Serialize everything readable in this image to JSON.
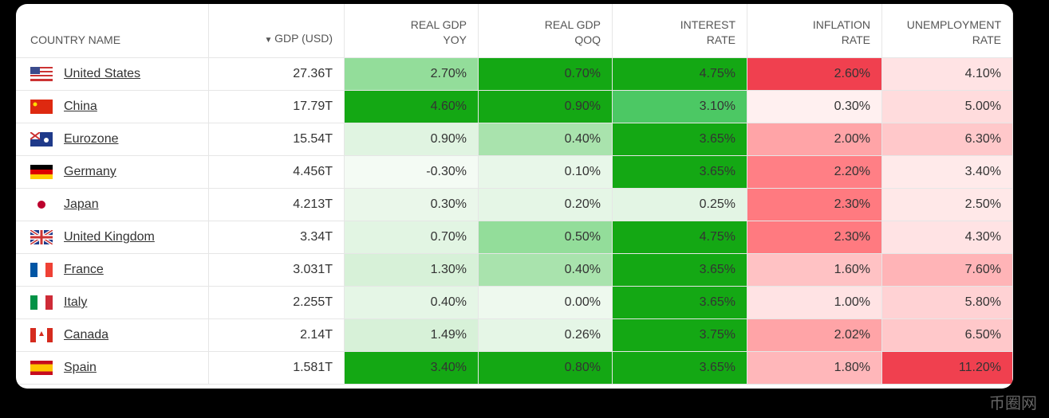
{
  "headers": [
    [
      "COUNTRY NAME"
    ],
    [
      "GDP (USD)"
    ],
    [
      "REAL GDP",
      "YOY"
    ],
    [
      "REAL GDP",
      "QOQ"
    ],
    [
      "INTEREST",
      "RATE"
    ],
    [
      "INFLATION",
      "RATE"
    ],
    [
      "UNEMPLOYMENT",
      "RATE"
    ]
  ],
  "rows": [
    [
      "United States",
      "27.36T",
      "2.70%",
      "0.70%",
      "4.75%",
      "2.60%",
      "4.10%"
    ],
    [
      "China",
      "17.79T",
      "4.60%",
      "0.90%",
      "3.10%",
      "0.30%",
      "5.00%"
    ],
    [
      "Eurozone",
      "15.54T",
      "0.90%",
      "0.40%",
      "3.65%",
      "2.00%",
      "6.30%"
    ],
    [
      "Germany",
      "4.456T",
      "-0.30%",
      "0.10%",
      "3.65%",
      "2.20%",
      "3.40%"
    ],
    [
      "Japan",
      "4.213T",
      "0.30%",
      "0.20%",
      "0.25%",
      "2.30%",
      "2.50%"
    ],
    [
      "United Kingdom",
      "3.34T",
      "0.70%",
      "0.50%",
      "4.75%",
      "2.30%",
      "4.30%"
    ],
    [
      "France",
      "3.031T",
      "1.30%",
      "0.40%",
      "3.65%",
      "1.60%",
      "7.60%"
    ],
    [
      "Italy",
      "2.255T",
      "0.40%",
      "0.00%",
      "3.65%",
      "1.00%",
      "5.80%"
    ],
    [
      "Canada",
      "2.14T",
      "1.49%",
      "0.26%",
      "3.75%",
      "2.02%",
      "6.50%"
    ],
    [
      "Spain",
      "1.581T",
      "3.40%",
      "0.80%",
      "3.65%",
      "1.80%",
      "11.20%"
    ]
  ],
  "cell_colors": [
    [
      "#93dd9a",
      "#14a814",
      "#14a814",
      "#f0404f",
      "#ffe3e4"
    ],
    [
      "#14a814",
      "#14a814",
      "#4cc864",
      "#fff0f0",
      "#ffdcdd"
    ],
    [
      "#e0f4e1",
      "#a9e3ad",
      "#14a814",
      "#ffa4a7",
      "#ffc8ca"
    ],
    [
      "#f4fbf4",
      "#e8f7e9",
      "#14a814",
      "#ff7f85",
      "#ffeaea"
    ],
    [
      "#eaf7ea",
      "#e5f6e6",
      "#e3f5e4",
      "#ff7a80",
      "#ffe8e8"
    ],
    [
      "#e2f5e3",
      "#93dd9a",
      "#14a814",
      "#ff7a80",
      "#ffe3e4"
    ],
    [
      "#d7f1d8",
      "#a9e3ad",
      "#14a814",
      "#ffc2c4",
      "#ffb4b7"
    ],
    [
      "#e5f6e6",
      "#eef9ee",
      "#14a814",
      "#ffe3e4",
      "#ffd2d4"
    ],
    [
      "#d7f1d8",
      "#e5f6e6",
      "#14a814",
      "#ffa4a7",
      "#ffc8ca"
    ],
    [
      "#14a814",
      "#14a814",
      "#14a814",
      "#ffb7ba",
      "#f0404f"
    ]
  ],
  "watermark": "币圈网"
}
